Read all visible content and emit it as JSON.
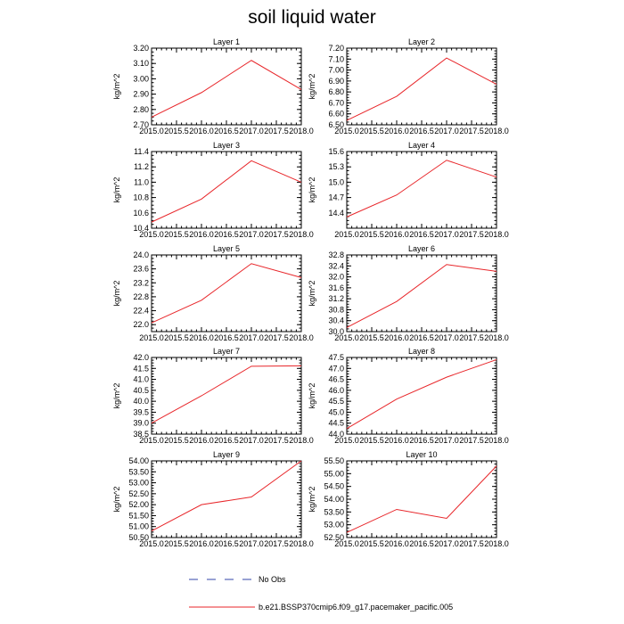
{
  "title": "soil liquid water",
  "line_color": "#e8262a",
  "obs_color": "#3344aa",
  "legend": {
    "obs_label": "No Obs",
    "model_label": "b.e21.BSSP370cmip6.f09_g17.pacemaker_pacific.005"
  },
  "chart_data": [
    {
      "type": "line",
      "title": "Layer 1",
      "ylabel": "kg/m^2",
      "x": [
        2015,
        2016,
        2017,
        2018
      ],
      "values": [
        2.75,
        2.91,
        3.12,
        2.93
      ],
      "xlim": [
        2015,
        2018
      ],
      "ylim": [
        2.7,
        3.2
      ],
      "xticks": [
        "2015.0",
        "2015.5",
        "2016.0",
        "2016.5",
        "2017.0",
        "2017.5",
        "2018.0"
      ],
      "yticks": [
        "2.70",
        "2.80",
        "2.90",
        "3.00",
        "3.10",
        "3.20"
      ]
    },
    {
      "type": "line",
      "title": "Layer 2",
      "ylabel": "kg/m^2",
      "x": [
        2015,
        2016,
        2017,
        2018
      ],
      "values": [
        6.54,
        6.76,
        7.11,
        6.87
      ],
      "xlim": [
        2015,
        2018
      ],
      "ylim": [
        6.5,
        7.2
      ],
      "xticks": [
        "2015.0",
        "2015.5",
        "2016.0",
        "2016.5",
        "2017.0",
        "2017.5",
        "2018.0"
      ],
      "yticks": [
        "6.50",
        "6.60",
        "6.70",
        "6.80",
        "6.90",
        "7.00",
        "7.10",
        "7.20"
      ]
    },
    {
      "type": "line",
      "title": "Layer 3",
      "ylabel": "kg/m^2",
      "x": [
        2015,
        2016,
        2017,
        2018
      ],
      "values": [
        10.48,
        10.78,
        11.28,
        11.0
      ],
      "xlim": [
        2015,
        2018
      ],
      "ylim": [
        10.4,
        11.4
      ],
      "xticks": [
        "2015.0",
        "2015.5",
        "2016.0",
        "2016.5",
        "2017.0",
        "2017.5",
        "2018.0"
      ],
      "yticks": [
        "10.4",
        "10.6",
        "10.8",
        "11.0",
        "11.2",
        "11.4"
      ]
    },
    {
      "type": "line",
      "title": "Layer 4",
      "ylabel": "kg/m^2",
      "x": [
        2015,
        2016,
        2017,
        2018
      ],
      "values": [
        14.32,
        14.75,
        15.43,
        15.1
      ],
      "xlim": [
        2015,
        2018
      ],
      "ylim": [
        14.1,
        15.6
      ],
      "xticks": [
        "2015.0",
        "2015.5",
        "2016.0",
        "2016.5",
        "2017.0",
        "2017.5",
        "2018.0"
      ],
      "yticks": [
        "14.4",
        "14.7",
        "15.0",
        "15.3",
        "15.6"
      ]
    },
    {
      "type": "line",
      "title": "Layer 5",
      "ylabel": "kg/m^2",
      "x": [
        2015,
        2016,
        2017,
        2018
      ],
      "values": [
        22.05,
        22.7,
        23.75,
        23.35
      ],
      "xlim": [
        2015,
        2018
      ],
      "ylim": [
        21.8,
        24.0
      ],
      "xticks": [
        "2015.0",
        "2015.5",
        "2016.0",
        "2016.5",
        "2017.0",
        "2017.5",
        "2018.0"
      ],
      "yticks": [
        "22.0",
        "22.4",
        "22.8",
        "23.2",
        "23.6",
        "24.0"
      ]
    },
    {
      "type": "line",
      "title": "Layer 6",
      "ylabel": "kg/m^2",
      "x": [
        2015,
        2016,
        2017,
        2018
      ],
      "values": [
        30.15,
        31.1,
        32.45,
        32.2
      ],
      "xlim": [
        2015,
        2018
      ],
      "ylim": [
        30.0,
        32.8
      ],
      "xticks": [
        "2015.0",
        "2015.5",
        "2016.0",
        "2016.5",
        "2017.0",
        "2017.5",
        "2018.0"
      ],
      "yticks": [
        "30.0",
        "30.4",
        "30.8",
        "31.2",
        "31.6",
        "32.0",
        "32.4",
        "32.8"
      ]
    },
    {
      "type": "line",
      "title": "Layer 7",
      "ylabel": "kg/m^2",
      "x": [
        2015,
        2016,
        2017,
        2018
      ],
      "values": [
        39.0,
        40.25,
        41.6,
        41.62
      ],
      "xlim": [
        2015,
        2018
      ],
      "ylim": [
        38.5,
        42.0
      ],
      "xticks": [
        "2015.0",
        "2015.5",
        "2016.0",
        "2016.5",
        "2017.0",
        "2017.5",
        "2018.0"
      ],
      "yticks": [
        "38.5",
        "39.0",
        "39.5",
        "40.0",
        "40.5",
        "41.0",
        "41.5",
        "42.0"
      ]
    },
    {
      "type": "line",
      "title": "Layer 8",
      "ylabel": "kg/m^2",
      "x": [
        2015,
        2016,
        2017,
        2018
      ],
      "values": [
        44.25,
        45.6,
        46.6,
        47.4
      ],
      "xlim": [
        2015,
        2018
      ],
      "ylim": [
        44.0,
        47.5
      ],
      "xticks": [
        "2015.0",
        "2015.5",
        "2016.0",
        "2016.5",
        "2017.0",
        "2017.5",
        "2018.0"
      ],
      "yticks": [
        "44.0",
        "44.5",
        "45.0",
        "45.5",
        "46.0",
        "46.5",
        "47.0",
        "47.5"
      ]
    },
    {
      "type": "line",
      "title": "Layer 9",
      "ylabel": "kg/m^2",
      "x": [
        2015,
        2016,
        2017,
        2018
      ],
      "values": [
        50.8,
        52.0,
        52.35,
        54.0
      ],
      "xlim": [
        2015,
        2018
      ],
      "ylim": [
        50.5,
        54.0
      ],
      "xticks": [
        "2015.0",
        "2015.5",
        "2016.0",
        "2016.5",
        "2017.0",
        "2017.5",
        "2018.0"
      ],
      "yticks": [
        "50.50",
        "51.00",
        "51.50",
        "52.00",
        "52.50",
        "53.00",
        "53.50",
        "54.00"
      ]
    },
    {
      "type": "line",
      "title": "Layer 10",
      "ylabel": "kg/m^2",
      "x": [
        2015,
        2016,
        2017,
        2018
      ],
      "values": [
        52.7,
        53.6,
        53.25,
        55.3
      ],
      "xlim": [
        2015,
        2018
      ],
      "ylim": [
        52.5,
        55.5
      ],
      "xticks": [
        "2015.0",
        "2015.5",
        "2016.0",
        "2016.5",
        "2017.0",
        "2017.5",
        "2018.0"
      ],
      "yticks": [
        "52.50",
        "53.00",
        "53.50",
        "54.00",
        "54.50",
        "55.00",
        "55.50"
      ]
    }
  ]
}
